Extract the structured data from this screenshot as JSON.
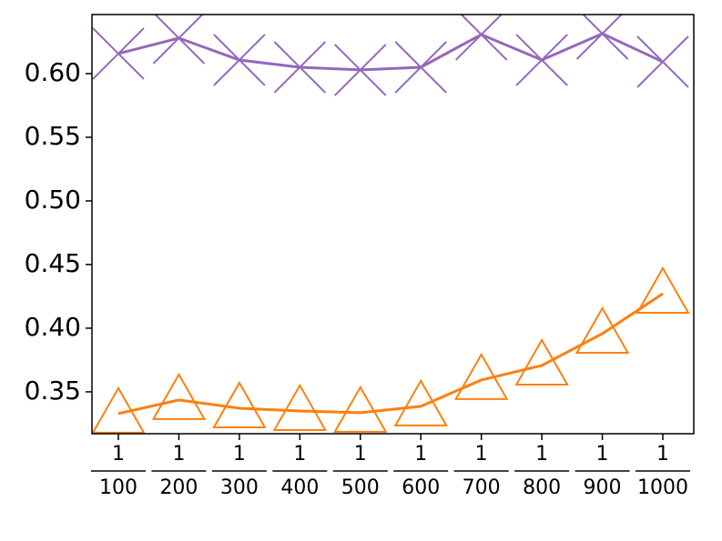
{
  "chart_data": {
    "type": "line",
    "categories": [
      {
        "numerator": "1",
        "denominator": "100"
      },
      {
        "numerator": "1",
        "denominator": "200"
      },
      {
        "numerator": "1",
        "denominator": "300"
      },
      {
        "numerator": "1",
        "denominator": "400"
      },
      {
        "numerator": "1",
        "denominator": "500"
      },
      {
        "numerator": "1",
        "denominator": "600"
      },
      {
        "numerator": "1",
        "denominator": "700"
      },
      {
        "numerator": "1",
        "denominator": "800"
      },
      {
        "numerator": "1",
        "denominator": "900"
      },
      {
        "numerator": "1",
        "denominator": "1000"
      }
    ],
    "series": [
      {
        "color": "#9467bd",
        "marker": "x",
        "values": [
          0.6157,
          0.6279,
          0.6107,
          0.605,
          0.6029,
          0.605,
          0.6307,
          0.6107,
          0.6314,
          0.6093
        ]
      },
      {
        "color": "#ff7f0e",
        "marker": "triangle",
        "values": [
          0.3329,
          0.3436,
          0.3371,
          0.335,
          0.3336,
          0.3386,
          0.3593,
          0.3707,
          0.3957,
          0.4271
        ]
      }
    ],
    "ylim": [
      0.3171,
      0.6464
    ],
    "yticks": [
      {
        "value": 0.35,
        "label": "0.35"
      },
      {
        "value": 0.4,
        "label": "0.40"
      },
      {
        "value": 0.45,
        "label": "0.45"
      },
      {
        "value": 0.5,
        "label": "0.50"
      },
      {
        "value": 0.55,
        "label": "0.55"
      },
      {
        "value": 0.6,
        "label": "0.60"
      }
    ]
  }
}
